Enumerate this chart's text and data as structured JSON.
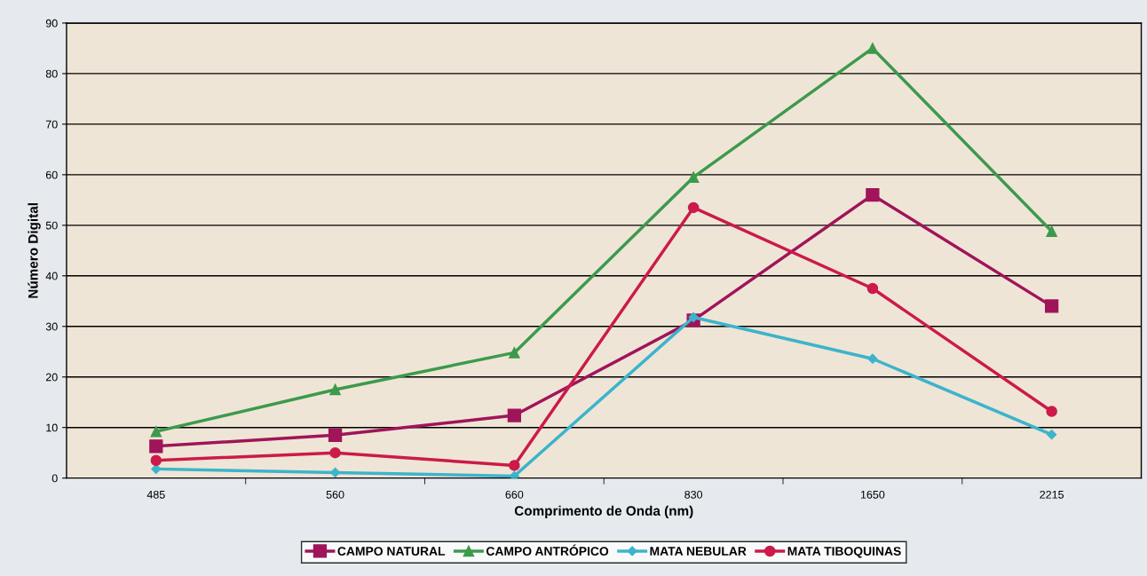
{
  "chart_data": {
    "type": "line",
    "xlabel": "Comprimento de Onda (nm)",
    "ylabel": "Número Digital",
    "categories": [
      "485",
      "560",
      "660",
      "830",
      "1650",
      "2215"
    ],
    "series": [
      {
        "name": "CAMPO NATURAL",
        "color": "#a0145a",
        "marker": "square",
        "values": [
          6.3,
          8.5,
          12.4,
          31.2,
          56,
          34
        ]
      },
      {
        "name": "CAMPO ANTRÓPICO",
        "color": "#3c9a4c",
        "marker": "triangle",
        "values": [
          9.2,
          17.5,
          24.8,
          59.5,
          85,
          48.8
        ]
      },
      {
        "name": "MATA NEBULAR",
        "color": "#3cb4cc",
        "marker": "diamond",
        "values": [
          1.8,
          1.1,
          0.4,
          31.8,
          23.6,
          8.6
        ]
      },
      {
        "name": "MATA TIBOQUINAS",
        "color": "#cc1a4a",
        "marker": "circle",
        "values": [
          3.5,
          5.0,
          2.5,
          53.5,
          37.5,
          13.2
        ]
      }
    ],
    "ylim": [
      0,
      90
    ],
    "yticks": [
      0,
      10,
      20,
      30,
      40,
      50,
      60,
      70,
      80,
      90
    ],
    "grid": "y",
    "legend": "bottom"
  }
}
